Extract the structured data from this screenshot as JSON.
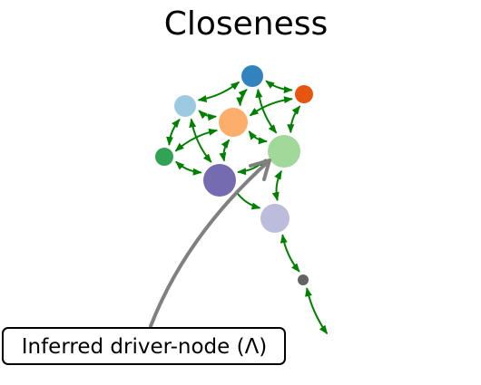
{
  "title": "Closeness",
  "annotation": {
    "label": "Inferred driver-node (Λ)",
    "arrow_color": "#808080",
    "box_border_color": "#000000"
  },
  "edge_color": "#008000",
  "nodes": [
    {
      "id": "blue",
      "color": "#3182bd"
    },
    {
      "id": "orange-dark",
      "color": "#e6550d"
    },
    {
      "id": "blue-light",
      "color": "#9ecae1"
    },
    {
      "id": "orange-light",
      "color": "#fdae6b"
    },
    {
      "id": "green-light",
      "color": "#a1d99b"
    },
    {
      "id": "green",
      "color": "#31a354"
    },
    {
      "id": "purple",
      "color": "#756bb1"
    },
    {
      "id": "lavender",
      "color": "#bcbddc"
    },
    {
      "id": "gray",
      "color": "#636363"
    }
  ],
  "edges": [
    {
      "from": "blue-light",
      "to": "blue",
      "bidirectional": true
    },
    {
      "from": "blue",
      "to": "orange-dark",
      "bidirectional": true
    },
    {
      "from": "blue",
      "to": "orange-light",
      "bidirectional": true
    },
    {
      "from": "blue",
      "to": "green-light",
      "bidirectional": true
    },
    {
      "from": "orange-dark",
      "to": "orange-light",
      "bidirectional": true
    },
    {
      "from": "orange-dark",
      "to": "green-light",
      "bidirectional": true
    },
    {
      "from": "blue-light",
      "to": "orange-light",
      "bidirectional": true
    },
    {
      "from": "blue-light",
      "to": "green",
      "bidirectional": true
    },
    {
      "from": "blue-light",
      "to": "purple",
      "bidirectional": true
    },
    {
      "from": "orange-light",
      "to": "green",
      "bidirectional": true
    },
    {
      "from": "orange-light",
      "to": "purple",
      "bidirectional": true
    },
    {
      "from": "orange-light",
      "to": "green-light",
      "bidirectional": true
    },
    {
      "from": "green",
      "to": "purple",
      "bidirectional": true
    },
    {
      "from": "purple",
      "to": "green-light",
      "bidirectional": true
    },
    {
      "from": "green-light",
      "to": "lavender",
      "bidirectional": true
    },
    {
      "from": "purple",
      "to": "lavender",
      "bidirectional": false
    },
    {
      "from": "lavender",
      "to": "gray",
      "bidirectional": true
    },
    {
      "from": "gray",
      "to": "offscreen",
      "bidirectional": true
    }
  ]
}
